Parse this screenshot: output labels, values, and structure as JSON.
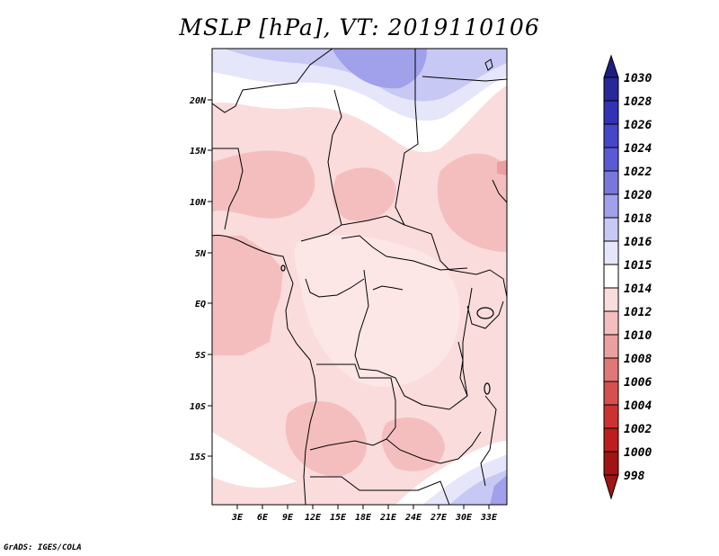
{
  "title": "MSLP [hPa], VT: 2019110106",
  "credit": "GrADS: IGES/COLA",
  "lon_labels": [
    "3E",
    "6E",
    "9E",
    "12E",
    "15E",
    "18E",
    "21E",
    "24E",
    "27E",
    "30E",
    "33E"
  ],
  "lat_labels": [
    "20N",
    "15N",
    "10N",
    "5N",
    "EQ",
    "5S",
    "10S",
    "15S"
  ],
  "colorbar": {
    "levels": [
      "1030",
      "1028",
      "1026",
      "1024",
      "1022",
      "1020",
      "1018",
      "1016",
      "1015",
      "1014",
      "1012",
      "1010",
      "1008",
      "1006",
      "1004",
      "1002",
      "1000",
      "998"
    ],
    "colors": [
      "#1e1e82",
      "#28289a",
      "#3232b4",
      "#4646c8",
      "#5a5ad2",
      "#7878dc",
      "#a0a0eb",
      "#c8c8f5",
      "#e6e6fa",
      "#ffffff",
      "#fadcdc",
      "#f5bebe",
      "#eba0a0",
      "#e17878",
      "#d75050",
      "#cd3232",
      "#be1e1e",
      "#a01414"
    ]
  },
  "colors": {
    "pressure_1016": "#c8c8f5",
    "pressure_1015": "#e6e6fa",
    "pressure_1014": "#ffffff",
    "pressure_1012": "#fadcdc",
    "pressure_1010": "#f5bebe",
    "pressure_1008": "#eba0a0"
  }
}
